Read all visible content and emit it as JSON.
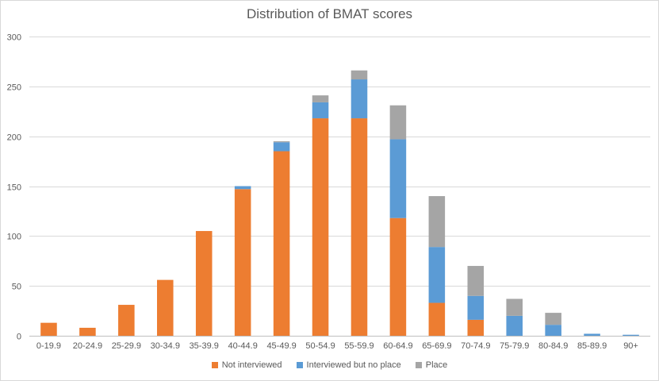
{
  "chart_data": {
    "type": "bar",
    "stacked": true,
    "title": "Distribution of BMAT scores",
    "xlabel": "",
    "ylabel": "",
    "ylim": [
      0,
      300
    ],
    "yticks": [
      0,
      50,
      100,
      150,
      200,
      250,
      300
    ],
    "grid": true,
    "legend_position": "bottom",
    "categories": [
      "0-19.9",
      "20-24.9",
      "25-29.9",
      "30-34.9",
      "35-39.9",
      "40-44.9",
      "45-49.9",
      "50-54.9",
      "55-59.9",
      "60-64.9",
      "65-69.9",
      "70-74.9",
      "75-79.9",
      "80-84.9",
      "85-89.9",
      "90+"
    ],
    "series": [
      {
        "name": "Not interviewed",
        "color": "#ed7d31",
        "values": [
          13,
          8,
          31,
          56,
          105,
          147,
          185,
          218,
          218,
          118,
          33,
          16,
          0,
          0,
          0,
          0
        ]
      },
      {
        "name": "Interviewed but no place",
        "color": "#5b9bd5",
        "values": [
          0,
          0,
          0,
          0,
          0,
          3,
          9,
          16,
          39,
          79,
          56,
          24,
          20,
          11,
          2,
          1
        ]
      },
      {
        "name": "Place",
        "color": "#a5a5a5",
        "values": [
          0,
          0,
          0,
          0,
          0,
          0,
          1,
          7,
          9,
          34,
          51,
          30,
          17,
          12,
          0,
          0
        ]
      }
    ]
  }
}
